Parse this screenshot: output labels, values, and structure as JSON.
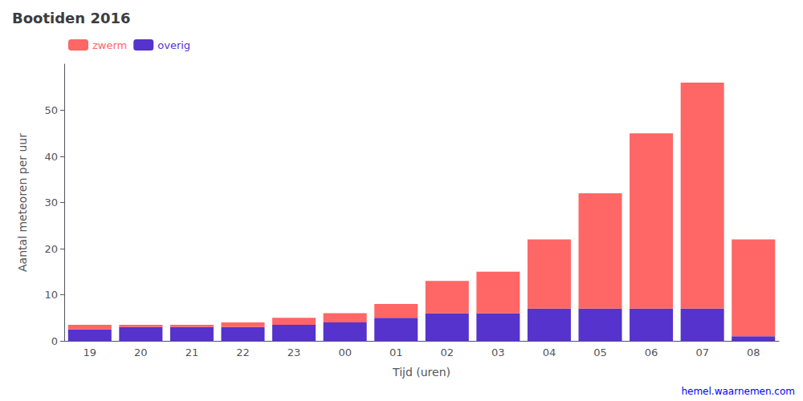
{
  "chart_data": {
    "type": "bar",
    "title": "Bootiden 2016",
    "xlabel": "Tijd (uren)",
    "ylabel": "Aantal meteoren per uur",
    "categories": [
      "19",
      "20",
      "21",
      "22",
      "23",
      "00",
      "01",
      "02",
      "03",
      "04",
      "05",
      "06",
      "07",
      "08"
    ],
    "series": [
      {
        "name": "overig",
        "color": "#5533cc",
        "values": [
          2.5,
          3.0,
          3.0,
          3.0,
          3.5,
          4.0,
          5.0,
          6.0,
          6.0,
          7.0,
          7.0,
          7.0,
          7.0,
          1.0
        ]
      },
      {
        "name": "zwerm",
        "color": "#ff6666",
        "values": [
          1.0,
          0.5,
          0.5,
          1.0,
          1.5,
          2.0,
          3.0,
          7.0,
          9.0,
          15.0,
          25.0,
          38.0,
          49.0,
          21.0
        ]
      }
    ],
    "stacked": true,
    "ylim": [
      0,
      60
    ],
    "yticks": [
      0,
      10,
      20,
      30,
      40,
      50
    ],
    "grid": false,
    "legend": "upper left",
    "annotations": [
      "hemel.waarnemen.com"
    ]
  }
}
